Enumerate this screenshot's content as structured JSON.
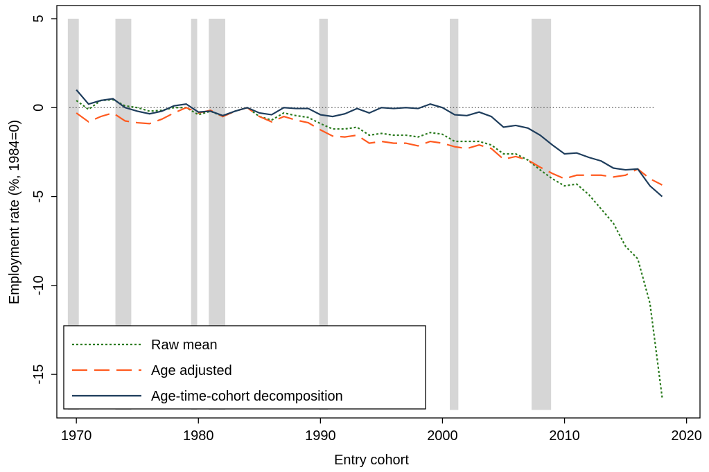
{
  "chart_data": {
    "type": "line",
    "xlabel": "Entry cohort",
    "ylabel": "Employment rate (%, 1984=0)",
    "x": [
      1970,
      1971,
      1972,
      1973,
      1974,
      1975,
      1976,
      1977,
      1978,
      1979,
      1980,
      1981,
      1982,
      1983,
      1984,
      1985,
      1986,
      1987,
      1988,
      1989,
      1990,
      1991,
      1992,
      1993,
      1994,
      1995,
      1996,
      1997,
      1998,
      1999,
      2000,
      2001,
      2002,
      2003,
      2004,
      2005,
      2006,
      2007,
      2008,
      2009,
      2010,
      2011,
      2012,
      2013,
      2014,
      2015,
      2016,
      2017,
      2018
    ],
    "series": [
      {
        "name": "Raw mean",
        "color": "#2a7a1e",
        "dash": "dotted",
        "values": [
          0.4,
          -0.1,
          0.4,
          0.45,
          0.1,
          0.0,
          -0.2,
          -0.15,
          0.0,
          0.0,
          -0.4,
          -0.2,
          -0.5,
          -0.2,
          0.0,
          -0.5,
          -0.7,
          -0.3,
          -0.45,
          -0.55,
          -0.9,
          -1.2,
          -1.2,
          -1.1,
          -1.55,
          -1.45,
          -1.55,
          -1.55,
          -1.65,
          -1.4,
          -1.5,
          -1.9,
          -1.9,
          -1.9,
          -2.1,
          -2.6,
          -2.6,
          -2.95,
          -3.5,
          -4.0,
          -4.4,
          -4.3,
          -4.9,
          -5.7,
          -6.5,
          -7.8,
          -8.5,
          -11.0,
          -16.3
        ]
      },
      {
        "name": "Age adjusted",
        "color": "#ff5a1f",
        "dash": "long-dash",
        "values": [
          -0.3,
          -0.8,
          -0.5,
          -0.3,
          -0.75,
          -0.85,
          -0.9,
          -0.65,
          -0.3,
          0.0,
          -0.3,
          -0.15,
          -0.5,
          -0.2,
          0.0,
          -0.5,
          -0.8,
          -0.5,
          -0.7,
          -0.85,
          -1.25,
          -1.6,
          -1.65,
          -1.55,
          -2.0,
          -1.9,
          -2.0,
          -2.0,
          -2.15,
          -1.9,
          -2.0,
          -2.2,
          -2.3,
          -2.1,
          -2.3,
          -2.9,
          -2.75,
          -2.95,
          -3.35,
          -3.7,
          -4.0,
          -3.8,
          -3.8,
          -3.8,
          -3.9,
          -3.8,
          -3.45,
          -4.0,
          -4.35
        ]
      },
      {
        "name": "Age-time-cohort decomposition",
        "color": "#1e3d5c",
        "dash": "solid",
        "values": [
          1.0,
          0.2,
          0.4,
          0.5,
          0.0,
          -0.2,
          -0.35,
          -0.2,
          0.1,
          0.2,
          -0.25,
          -0.2,
          -0.45,
          -0.2,
          0.0,
          -0.3,
          -0.4,
          0.0,
          -0.05,
          -0.05,
          -0.4,
          -0.5,
          -0.35,
          -0.05,
          -0.3,
          0.0,
          -0.05,
          0.0,
          -0.05,
          0.2,
          0.0,
          -0.4,
          -0.45,
          -0.25,
          -0.5,
          -1.1,
          -1.0,
          -1.15,
          -1.55,
          -2.1,
          -2.6,
          -2.55,
          -2.8,
          -3.0,
          -3.4,
          -3.5,
          -3.45,
          -4.4,
          -5.0
        ]
      }
    ],
    "shaded_periods": [
      [
        1969.3,
        1970.2
      ],
      [
        1973.2,
        1974.5
      ],
      [
        1979.4,
        1979.9
      ],
      [
        1980.85,
        1982.2
      ],
      [
        1989.9,
        1990.6
      ],
      [
        2000.6,
        2001.3
      ],
      [
        2007.3,
        2008.9
      ]
    ],
    "shade_range": [
      -17,
      5
    ],
    "shade_color": "#d6d6d6",
    "reference_line": 0,
    "xlim": [
      1968.4,
      2021.1
    ],
    "ylim": [
      -17.45,
      5.74
    ],
    "xticks": [
      1970,
      1980,
      1990,
      2000,
      2010,
      2020
    ],
    "yticks": [
      5,
      0,
      -5,
      -10,
      -15
    ],
    "legend": "lower left"
  }
}
